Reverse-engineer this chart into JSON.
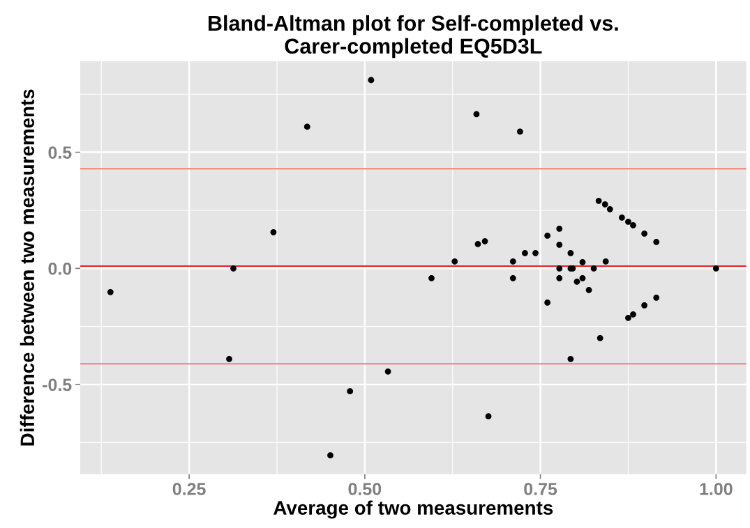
{
  "chart_data": {
    "type": "scatter",
    "title": "Bland-Altman plot for Self-completed vs.\nCarer-completed EQ5D3L",
    "xlabel": "Average of two measurements",
    "ylabel": "Difference between two measurements",
    "x": [
      0.138,
      0.313,
      0.37,
      0.418,
      0.509,
      0.307,
      0.479,
      0.533,
      0.451,
      0.595,
      0.628,
      0.659,
      0.721,
      0.661,
      0.671,
      0.676,
      0.711,
      0.711,
      0.728,
      0.743,
      0.76,
      0.76,
      0.777,
      0.777,
      0.777,
      0.777,
      0.793,
      0.793,
      0.796,
      0.793,
      0.802,
      0.81,
      0.81,
      0.819,
      0.826,
      0.833,
      0.842,
      0.849,
      0.835,
      0.843,
      0.866,
      0.875,
      0.882,
      0.875,
      0.882,
      0.898,
      0.898,
      0.915,
      0.915,
      1.0
    ],
    "series": [
      {
        "color": "#000000",
        "values": [
          -0.102,
          0.0,
          0.156,
          0.61,
          0.811,
          -0.39,
          -0.529,
          -0.444,
          -0.805,
          -0.042,
          0.03,
          0.664,
          0.589,
          0.105,
          0.117,
          -0.637,
          0.03,
          -0.042,
          0.066,
          0.066,
          0.141,
          -0.147,
          0.171,
          0.102,
          0.0,
          -0.042,
          0.066,
          0.0,
          0.0,
          -0.39,
          -0.057,
          0.027,
          -0.042,
          -0.093,
          0.0,
          0.291,
          0.276,
          0.255,
          -0.3,
          0.03,
          0.219,
          0.201,
          0.186,
          -0.213,
          -0.198,
          0.15,
          -0.159,
          0.114,
          -0.126,
          0.0
        ]
      }
    ],
    "marker": "circle",
    "xlim": [
      0.095,
      1.043
    ],
    "ylim": [
      -0.886,
      0.892
    ],
    "xticks": [
      {
        "value": 0.25,
        "label": "0.25"
      },
      {
        "value": 0.5,
        "label": "0.50"
      },
      {
        "value": 0.75,
        "label": "0.75"
      },
      {
        "value": 1.0,
        "label": "1.00"
      }
    ],
    "yticks": [
      {
        "value": -0.5,
        "label": "-0.5"
      },
      {
        "value": 0.0,
        "label": "0.0"
      },
      {
        "value": 0.5,
        "label": "0.5"
      }
    ],
    "grid": true,
    "ref_lines": [
      {
        "axis": "y",
        "value": 0.429,
        "label": null,
        "color": "#f08070",
        "line_style": "solid"
      },
      {
        "axis": "y",
        "value": 0.01,
        "label": null,
        "color": "#e8202a",
        "line_style": "solid"
      },
      {
        "axis": "y",
        "value": -0.411,
        "label": null,
        "color": "#f08070",
        "line_style": "solid"
      }
    ]
  }
}
